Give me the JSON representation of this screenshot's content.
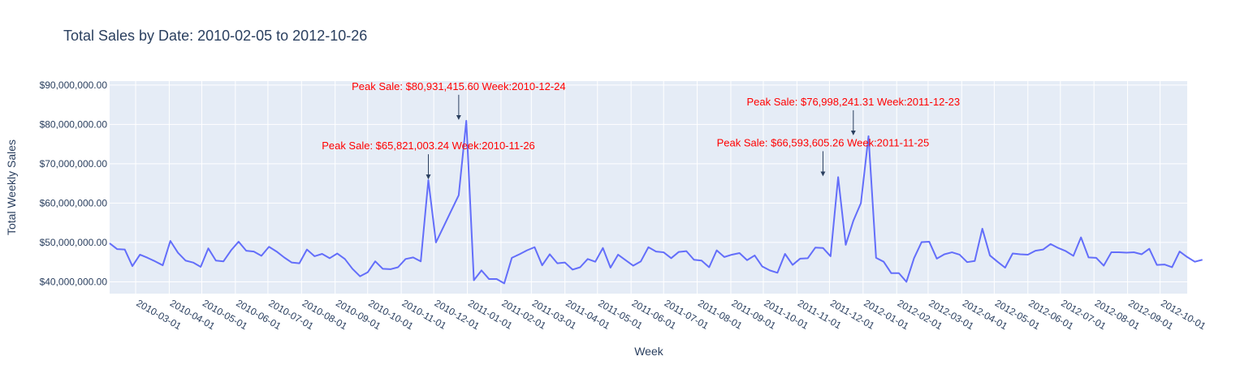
{
  "chart_data": {
    "type": "line",
    "title": "Total Sales by Date: 2010-02-05 to 2012-10-26",
    "xlabel": "Week",
    "ylabel": "Total Weekly Sales",
    "x_range": [
      "2010-02-05",
      "2012-10-26"
    ],
    "ylim": [
      37000000,
      91000000
    ],
    "grid": true,
    "colors": {
      "line": "#636efa",
      "plot_bg": "#e5ecf6",
      "grid": "#ffffff",
      "annotation": "#ff0000",
      "arrow": "#2a3f5f",
      "text": "#2a3f5f"
    },
    "y_ticks": [
      {
        "value": 40000000,
        "label": "$40,000,000.00"
      },
      {
        "value": 50000000,
        "label": "$50,000,000.00"
      },
      {
        "value": 60000000,
        "label": "$60,000,000.00"
      },
      {
        "value": 70000000,
        "label": "$70,000,000.00"
      },
      {
        "value": 80000000,
        "label": "$80,000,000.00"
      },
      {
        "value": 90000000,
        "label": "$90,000,000.00"
      }
    ],
    "x_ticks": [
      "2010-03-01",
      "2010-04-01",
      "2010-05-01",
      "2010-06-01",
      "2010-07-01",
      "2010-08-01",
      "2010-09-01",
      "2010-10-01",
      "2010-11-01",
      "2010-12-01",
      "2011-01-01",
      "2011-02-01",
      "2011-03-01",
      "2011-04-01",
      "2011-05-01",
      "2011-06-01",
      "2011-07-01",
      "2011-08-01",
      "2011-09-01",
      "2011-10-01",
      "2011-11-01",
      "2011-12-01",
      "2012-01-01",
      "2012-02-01",
      "2012-03-01",
      "2012-04-01",
      "2012-05-01",
      "2012-06-01",
      "2012-07-01",
      "2012-08-01",
      "2012-09-01",
      "2012-10-01"
    ],
    "series": [
      {
        "start_date": "2010-02-05",
        "interval_days": 7,
        "values": [
          49800000,
          48300000,
          48200000,
          44000000,
          46900000,
          46100000,
          45200000,
          44200000,
          50400000,
          47400000,
          45400000,
          44900000,
          43800000,
          48500000,
          45400000,
          45200000,
          48000000,
          50200000,
          47900000,
          47700000,
          46600000,
          48900000,
          47700000,
          46200000,
          44900000,
          44700000,
          48200000,
          46500000,
          47100000,
          46000000,
          47200000,
          45800000,
          43300000,
          41400000,
          42400000,
          45200000,
          43300000,
          43200000,
          43700000,
          45800000,
          46200000,
          45200000,
          65821003.24,
          50000000,
          54000000,
          58000000,
          62000000,
          80931415.6,
          40400000,
          42900000,
          40700000,
          40700000,
          39600000,
          46100000,
          47000000,
          48000000,
          48800000,
          44200000,
          47000000,
          44700000,
          44900000,
          43100000,
          43700000,
          45800000,
          45100000,
          48600000,
          43600000,
          46900000,
          45500000,
          44100000,
          45200000,
          48800000,
          47700000,
          47500000,
          46000000,
          47600000,
          47800000,
          45600000,
          45400000,
          43700000,
          48000000,
          46300000,
          46900000,
          47300000,
          45500000,
          46700000,
          43900000,
          42900000,
          42300000,
          47100000,
          44300000,
          45900000,
          46000000,
          48700000,
          48600000,
          46500000,
          66593605.26,
          49400000,
          55500000,
          60000000,
          76998241.31,
          46100000,
          45100000,
          42200000,
          42200000,
          40000000,
          46000000,
          50100000,
          50200000,
          45900000,
          47000000,
          47500000,
          46900000,
          45000000,
          45300000,
          53500000,
          46700000,
          45100000,
          43600000,
          47200000,
          47000000,
          46900000,
          47900000,
          48200000,
          49600000,
          48600000,
          47800000,
          46600000,
          51300000,
          46200000,
          46100000,
          44100000,
          47500000,
          47500000,
          47400000,
          47500000,
          47000000,
          48400000,
          44300000,
          44400000,
          43700000,
          47700000,
          46300000,
          45100000,
          45600000
        ]
      }
    ],
    "annotations": [
      {
        "text": "Peak Sale: $65,821,003.24 Week:2010-11-26",
        "date": "2010-11-26",
        "value": 65821003.24
      },
      {
        "text": "Peak Sale: $80,931,415.60 Week:2010-12-24",
        "date": "2010-12-24",
        "value": 80931415.6
      },
      {
        "text": "Peak Sale: $66,593,605.26 Week:2011-11-25",
        "date": "2011-11-25",
        "value": 66593605.26
      },
      {
        "text": "Peak Sale: $76,998,241.31 Week:2011-12-23",
        "date": "2011-12-23",
        "value": 76998241.31
      }
    ]
  }
}
